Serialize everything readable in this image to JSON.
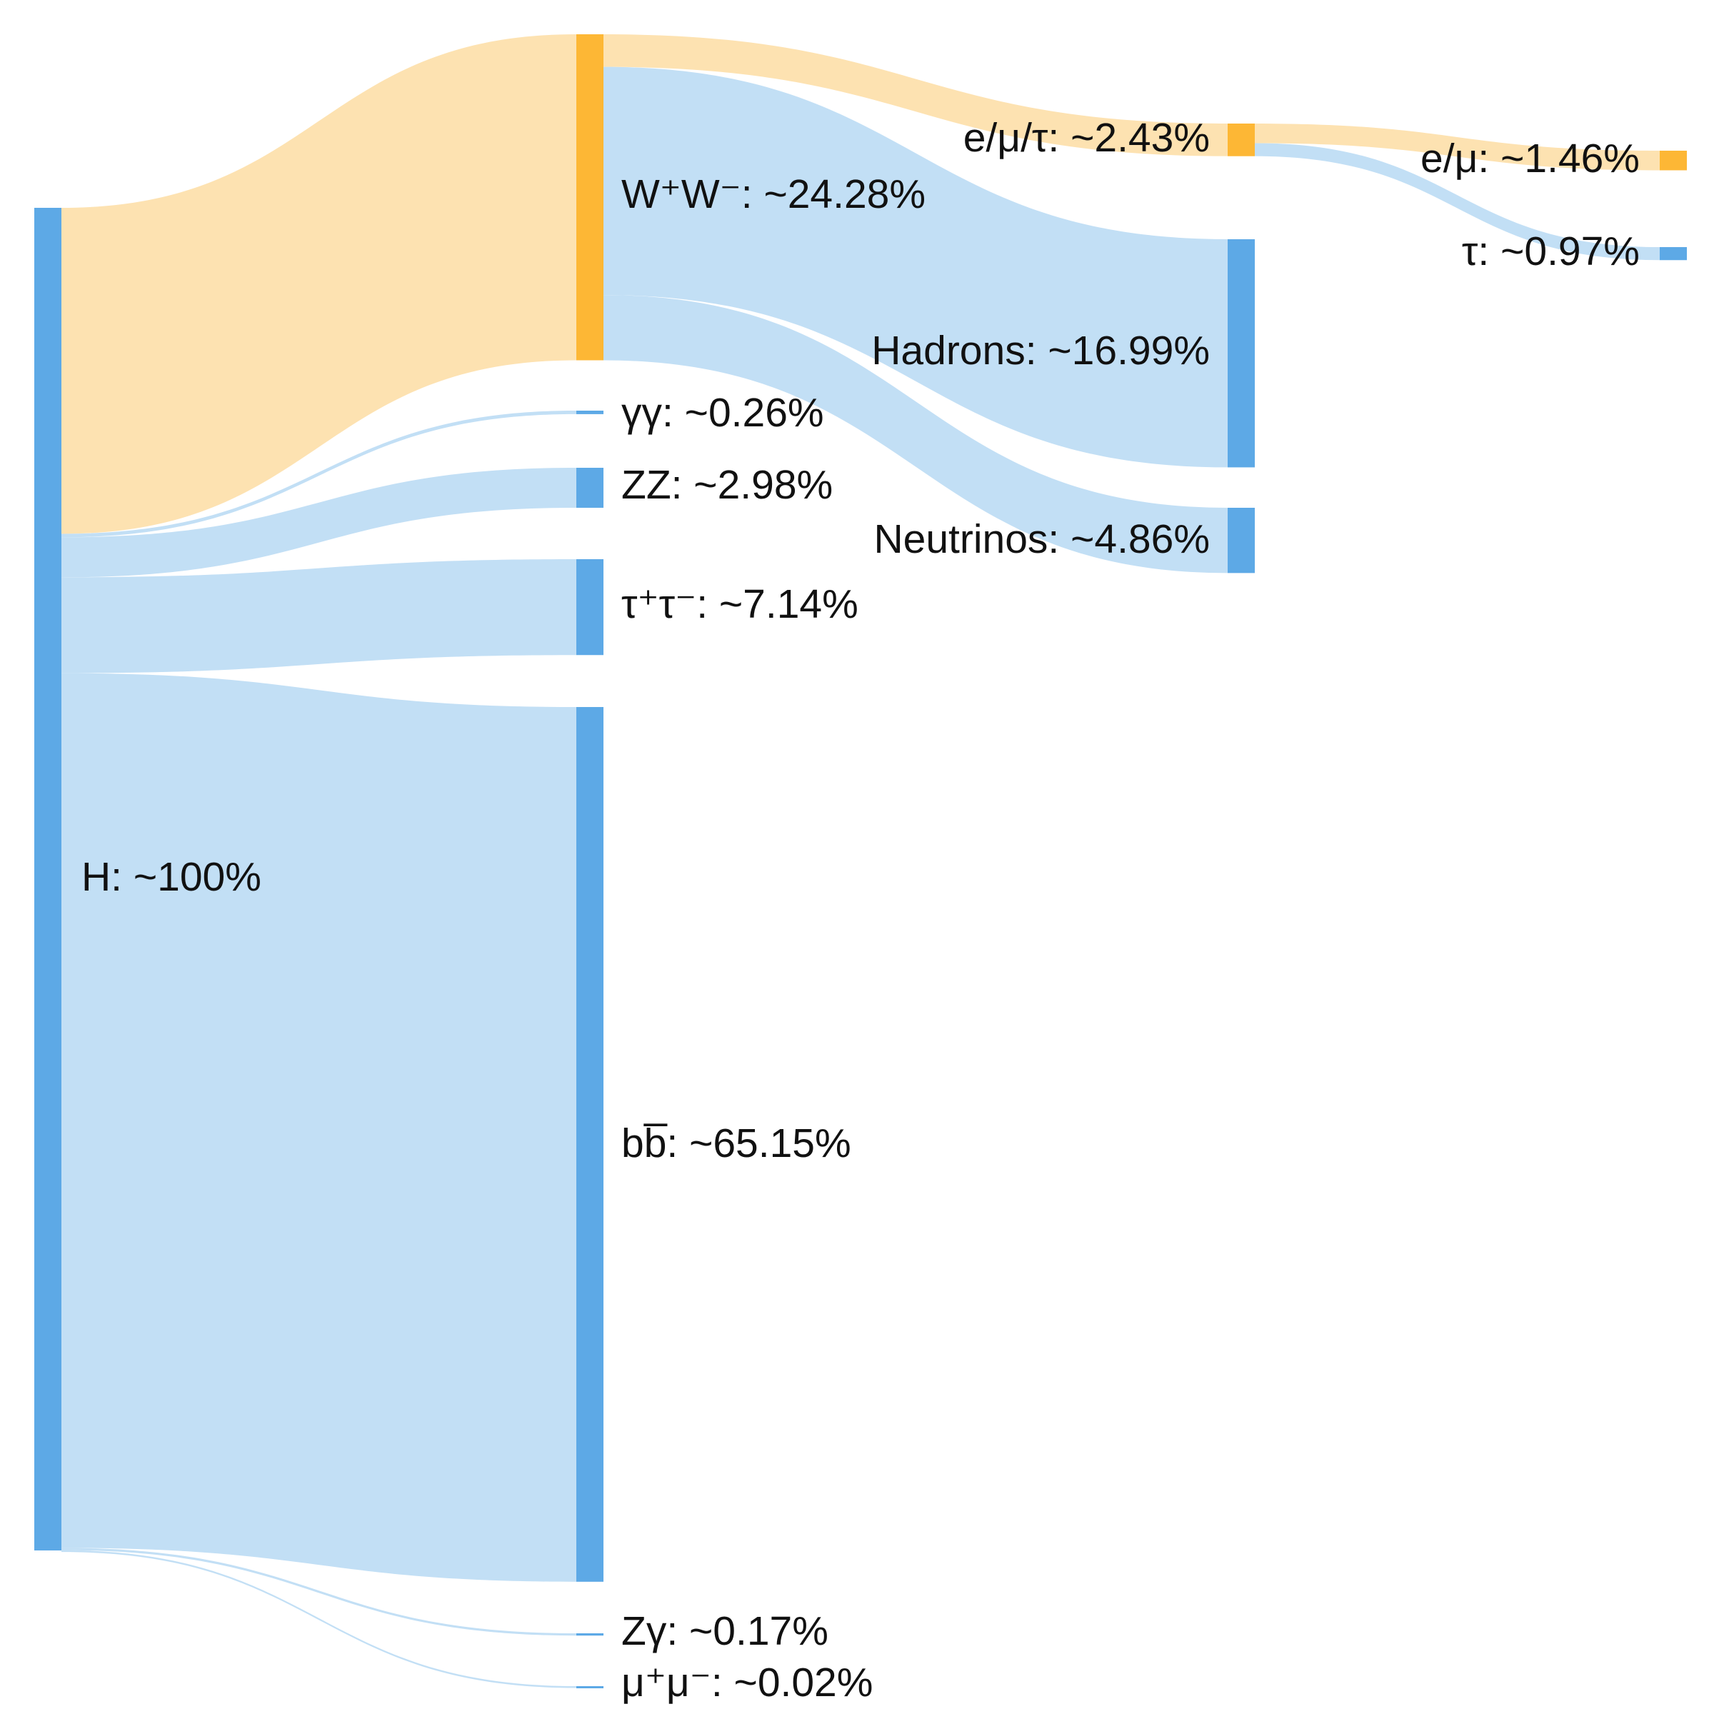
{
  "colors": {
    "node_blue": "#5DA9E6",
    "node_orange": "#FDB735",
    "link_blue": "#C2DFF5",
    "link_orange": "#FDE2B1"
  },
  "chart_data": {
    "type": "sankey",
    "unit": "%",
    "nodes": [
      {
        "id": "H",
        "label": "H: ~100%",
        "value": 100,
        "color": "node_blue"
      },
      {
        "id": "WW",
        "label": "W⁺W⁻: ~24.28%",
        "value": 24.28,
        "color": "node_orange"
      },
      {
        "id": "gg",
        "label": "γγ: ~0.26%",
        "value": 0.26,
        "color": "node_blue"
      },
      {
        "id": "ZZ",
        "label": "ZZ: ~2.98%",
        "value": 2.98,
        "color": "node_blue"
      },
      {
        "id": "tautau",
        "label": "τ⁺τ⁻: ~7.14%",
        "value": 7.14,
        "color": "node_blue"
      },
      {
        "id": "bb",
        "label": "bb̅: ~65.15%",
        "value": 65.15,
        "color": "node_blue"
      },
      {
        "id": "Zg",
        "label": "Zγ: ~0.17%",
        "value": 0.17,
        "color": "node_blue"
      },
      {
        "id": "mumu",
        "label": "μ⁺μ⁻: ~0.02%",
        "value": 0.02,
        "color": "node_blue"
      },
      {
        "id": "lep",
        "label": "e/μ/τ: ~2.43%",
        "value": 2.43,
        "color": "node_orange"
      },
      {
        "id": "had",
        "label": "Hadrons: ~16.99%",
        "value": 16.99,
        "color": "node_blue"
      },
      {
        "id": "nu",
        "label": "Neutrinos: ~4.86%",
        "value": 4.86,
        "color": "node_blue"
      },
      {
        "id": "emu",
        "label": "e/μ: ~1.46%",
        "value": 1.46,
        "color": "node_orange"
      },
      {
        "id": "tau",
        "label": "τ: ~0.97%",
        "value": 0.97,
        "color": "node_blue"
      }
    ],
    "links": [
      {
        "source": "H",
        "target": "WW",
        "value": 24.28,
        "color": "link_orange"
      },
      {
        "source": "H",
        "target": "gg",
        "value": 0.26,
        "color": "link_blue"
      },
      {
        "source": "H",
        "target": "ZZ",
        "value": 2.98,
        "color": "link_blue"
      },
      {
        "source": "H",
        "target": "tautau",
        "value": 7.14,
        "color": "link_blue"
      },
      {
        "source": "H",
        "target": "bb",
        "value": 65.15,
        "color": "link_blue"
      },
      {
        "source": "H",
        "target": "Zg",
        "value": 0.17,
        "color": "link_blue"
      },
      {
        "source": "H",
        "target": "mumu",
        "value": 0.02,
        "color": "link_blue"
      },
      {
        "source": "WW",
        "target": "lep",
        "value": 2.43,
        "color": "link_orange"
      },
      {
        "source": "WW",
        "target": "had",
        "value": 16.99,
        "color": "link_blue"
      },
      {
        "source": "WW",
        "target": "nu",
        "value": 4.86,
        "color": "link_blue"
      },
      {
        "source": "lep",
        "target": "emu",
        "value": 1.46,
        "color": "link_orange"
      },
      {
        "source": "lep",
        "target": "tau",
        "value": 0.97,
        "color": "link_blue"
      }
    ]
  }
}
